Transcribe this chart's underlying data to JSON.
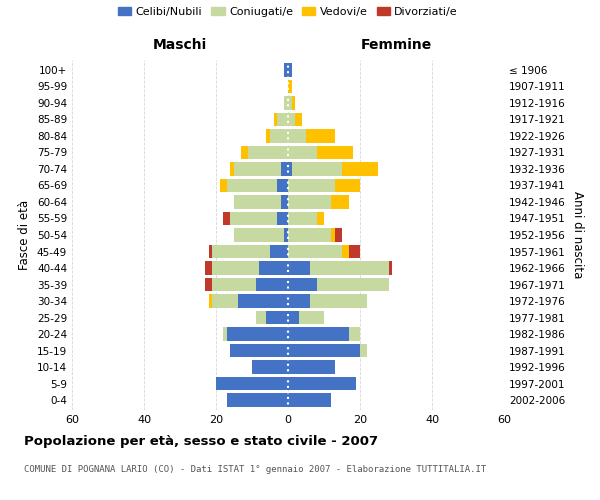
{
  "age_groups": [
    "0-4",
    "5-9",
    "10-14",
    "15-19",
    "20-24",
    "25-29",
    "30-34",
    "35-39",
    "40-44",
    "45-49",
    "50-54",
    "55-59",
    "60-64",
    "65-69",
    "70-74",
    "75-79",
    "80-84",
    "85-89",
    "90-94",
    "95-99",
    "100+"
  ],
  "birth_years": [
    "2002-2006",
    "1997-2001",
    "1992-1996",
    "1987-1991",
    "1982-1986",
    "1977-1981",
    "1972-1976",
    "1967-1971",
    "1962-1966",
    "1957-1961",
    "1952-1956",
    "1947-1951",
    "1942-1946",
    "1937-1941",
    "1932-1936",
    "1927-1931",
    "1922-1926",
    "1917-1921",
    "1912-1916",
    "1907-1911",
    "≤ 1906"
  ],
  "maschi": {
    "celibi": [
      17,
      20,
      10,
      16,
      17,
      6,
      14,
      9,
      8,
      5,
      1,
      3,
      2,
      3,
      2,
      0,
      0,
      0,
      0,
      0,
      1
    ],
    "coniugati": [
      0,
      0,
      0,
      0,
      1,
      3,
      7,
      12,
      13,
      16,
      14,
      13,
      13,
      14,
      13,
      11,
      5,
      3,
      1,
      0,
      0
    ],
    "vedovi": [
      0,
      0,
      0,
      0,
      0,
      0,
      1,
      0,
      0,
      0,
      0,
      0,
      0,
      2,
      1,
      2,
      1,
      1,
      0,
      0,
      0
    ],
    "divorziati": [
      0,
      0,
      0,
      0,
      0,
      0,
      0,
      2,
      2,
      1,
      0,
      2,
      0,
      0,
      0,
      0,
      0,
      0,
      0,
      0,
      0
    ]
  },
  "femmine": {
    "nubili": [
      12,
      19,
      13,
      20,
      17,
      3,
      6,
      8,
      6,
      0,
      0,
      0,
      0,
      0,
      1,
      0,
      0,
      0,
      0,
      0,
      1
    ],
    "coniugate": [
      0,
      0,
      0,
      2,
      3,
      7,
      16,
      20,
      22,
      15,
      12,
      8,
      12,
      13,
      14,
      8,
      5,
      2,
      1,
      0,
      0
    ],
    "vedove": [
      0,
      0,
      0,
      0,
      0,
      0,
      0,
      0,
      0,
      2,
      1,
      2,
      5,
      7,
      10,
      10,
      8,
      2,
      1,
      1,
      0
    ],
    "divorziate": [
      0,
      0,
      0,
      0,
      0,
      0,
      0,
      0,
      1,
      3,
      2,
      0,
      0,
      0,
      0,
      0,
      0,
      0,
      0,
      0,
      0
    ]
  },
  "colors": {
    "celibi": "#4472c4",
    "coniugati": "#c5d9a0",
    "vedovi": "#ffc000",
    "divorziati": "#c0392b"
  },
  "title": "Popolazione per età, sesso e stato civile - 2007",
  "subtitle": "COMUNE DI POGNANA LARIO (CO) - Dati ISTAT 1° gennaio 2007 - Elaborazione TUTTITALIA.IT",
  "xlabel_left": "Maschi",
  "xlabel_right": "Femmine",
  "ylabel_left": "Fasce di età",
  "ylabel_right": "Anni di nascita",
  "xlim": 60,
  "background_color": "#ffffff",
  "grid_color": "#cccccc"
}
